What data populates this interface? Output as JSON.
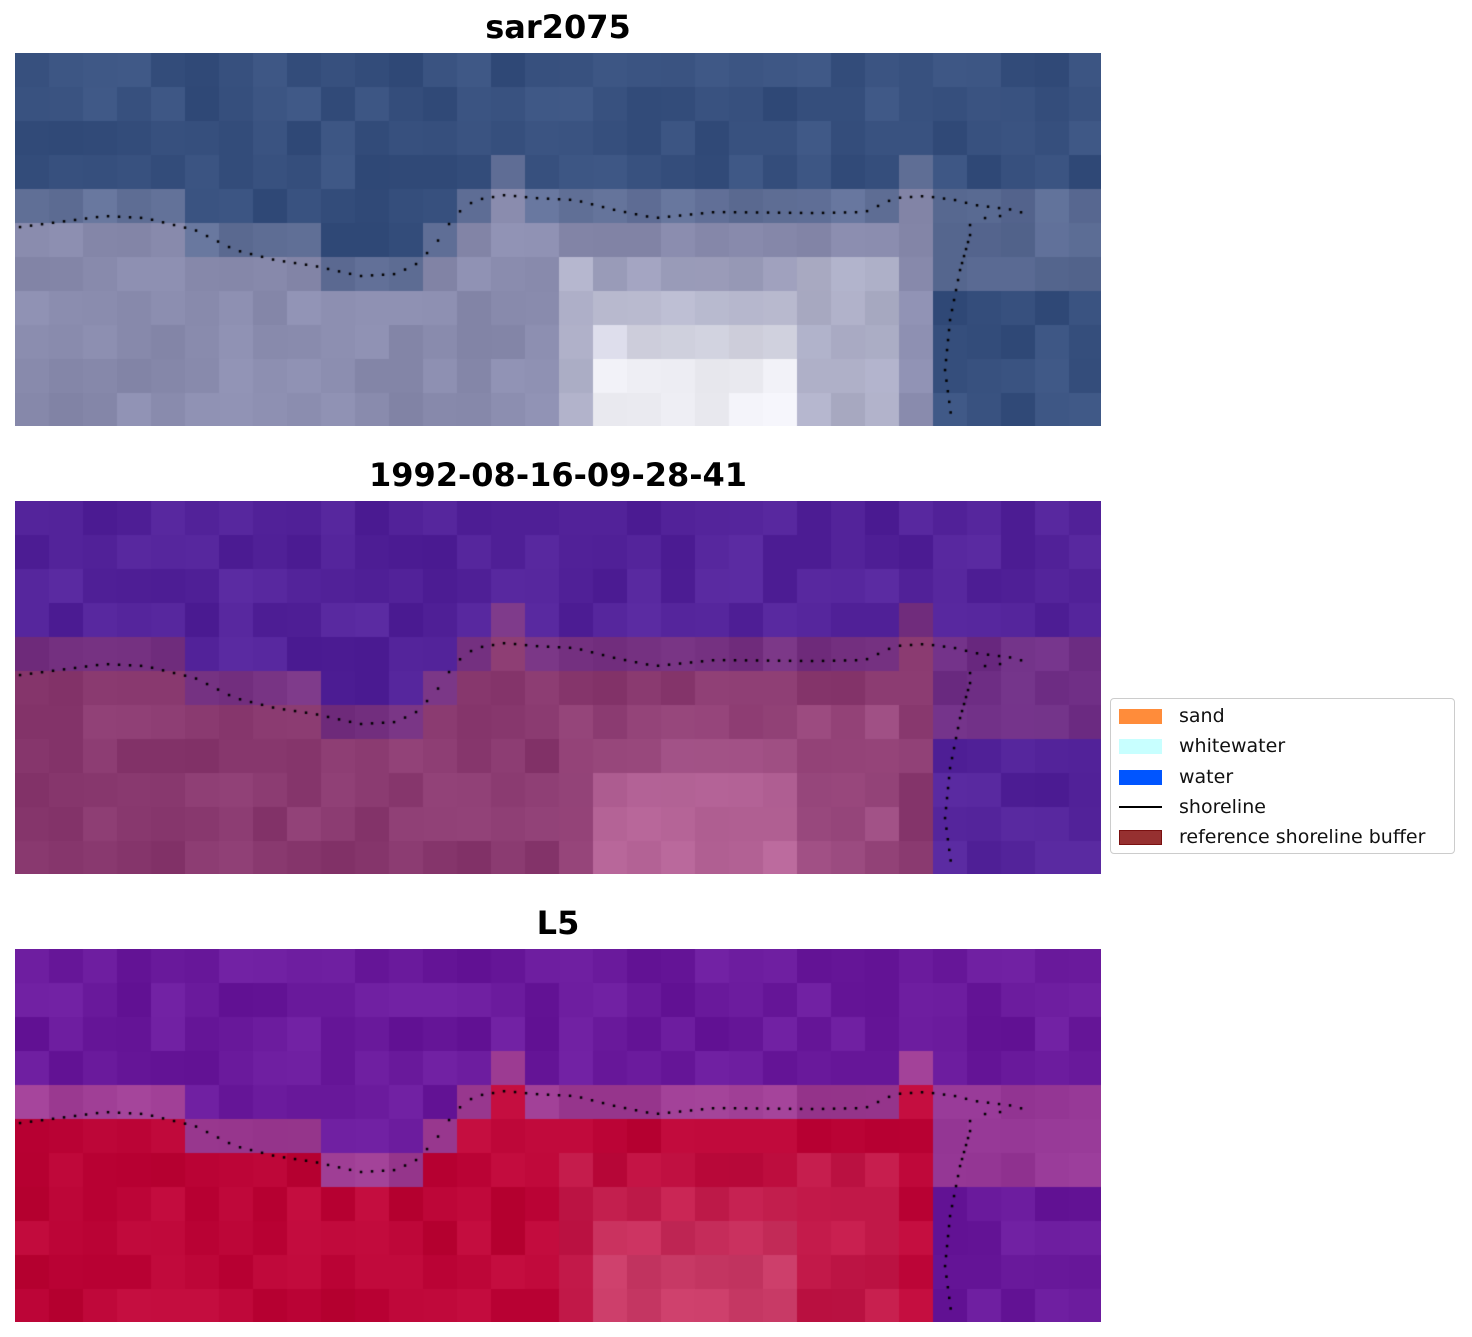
{
  "panels": [
    {
      "title": "sar2075",
      "palette": {
        "water": "#38517f",
        "land": "#8a8cae",
        "bright": "#f0f0f6",
        "edge": "#7d85a8"
      }
    },
    {
      "title": "1992-08-16-09-28-41",
      "palette": {
        "water": "#53239a",
        "land": "#8a3a70",
        "bright": "#b8679a",
        "edge": "#8f3e74"
      }
    },
    {
      "title": "L5",
      "palette": {
        "water": "#6a1a9c",
        "land": "#bd0638",
        "bright": "#c83a66",
        "edge": "#c0548e"
      }
    }
  ],
  "legend": {
    "items": [
      {
        "label": "sand",
        "color": "#ff8c3a",
        "type": "patch"
      },
      {
        "label": "whitewater",
        "color": "#c8ffff",
        "type": "patch"
      },
      {
        "label": "water",
        "color": "#0055ff",
        "type": "patch"
      },
      {
        "label": "shoreline",
        "color": "#000000",
        "type": "line"
      },
      {
        "label": "reference shoreline buffer",
        "color": "#963030",
        "type": "patch"
      }
    ]
  }
}
